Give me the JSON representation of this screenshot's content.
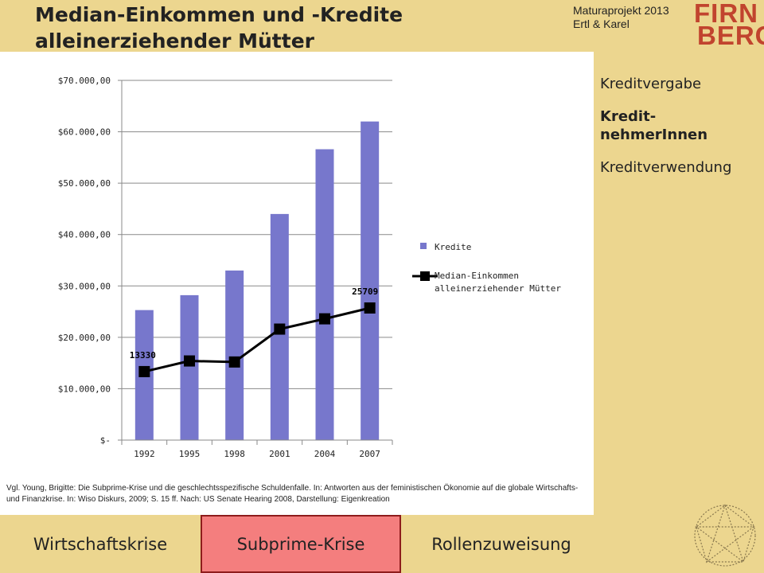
{
  "header": {
    "title_line1": "Median-Einkommen und -Kredite",
    "title_line2": "alleinerziehender Mütter",
    "project_line1": "Maturaprojekt 2013",
    "project_line2": "Ertl & Karel",
    "logo_line1": "FIRN",
    "logo_line2": "BERG"
  },
  "side_nav": {
    "items": [
      {
        "label": "Kreditvergabe",
        "active": false
      },
      {
        "label": "Kredit-",
        "label2": "nehmerInnen",
        "active": true
      },
      {
        "label": "Kreditverwendung",
        "active": false
      }
    ]
  },
  "bottom_nav": {
    "tabs": [
      {
        "label": "Wirtschaftskrise",
        "active": false
      },
      {
        "label": "Subprime-Krise",
        "active": true
      },
      {
        "label": "Rollenzuweisung",
        "active": false
      }
    ]
  },
  "source_text": "Vgl. Young, Brigitte: Die Subprime-Krise und die geschlechtsspezifische Schuldenfalle. In: Antworten aus der feministischen Ökonomie auf die globale Wirtschafts-und Finanzkrise. In: Wiso Diskurs, 2009; S. 15 ff. Nach: US Senate Hearing 2008, Darstellung: Eigenkreation",
  "colors": {
    "bar": "#7777cc",
    "line": "#000000",
    "accent_tab": "#f47e7e",
    "background": "#ecd68f",
    "logo": "#c1442e"
  },
  "chart_data": {
    "type": "bar",
    "categories": [
      "1992",
      "1995",
      "1998",
      "2001",
      "2004",
      "2007"
    ],
    "ylim": [
      0,
      70000
    ],
    "y_ticks": [
      {
        "value": 0,
        "label": "$-"
      },
      {
        "value": 10000,
        "label": "$10.000,00"
      },
      {
        "value": 20000,
        "label": "$20.000,00"
      },
      {
        "value": 30000,
        "label": "$30.000,00"
      },
      {
        "value": 40000,
        "label": "$40.000,00"
      },
      {
        "value": 50000,
        "label": "$50.000,00"
      },
      {
        "value": 60000,
        "label": "$60.000,00"
      },
      {
        "value": 70000,
        "label": "$70.000,00"
      }
    ],
    "grid": true,
    "legend_position": "right",
    "series": [
      {
        "name": "Kredite",
        "kind": "bar",
        "values": [
          25300,
          28200,
          33000,
          44000,
          56600,
          62000
        ]
      },
      {
        "name": "Median-Einkommen",
        "name2": "alleinerziehender Mütter",
        "kind": "line",
        "values": [
          13330,
          15400,
          15200,
          21600,
          23600,
          25709
        ]
      }
    ],
    "data_labels": [
      {
        "series": 1,
        "index": 0,
        "text": "13330"
      },
      {
        "series": 1,
        "index": 5,
        "text": "25709"
      }
    ]
  }
}
